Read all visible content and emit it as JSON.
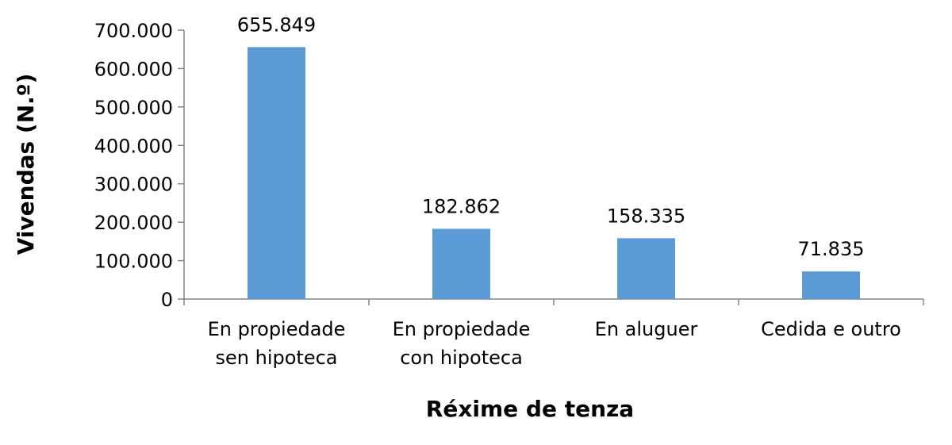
{
  "chart_data": {
    "type": "bar",
    "categories": [
      [
        "En propiedade",
        "sen hipoteca"
      ],
      [
        "En propiedade",
        "con hipoteca"
      ],
      [
        "En aluguer"
      ],
      [
        "Cedida e outro"
      ]
    ],
    "values": [
      655849,
      182862,
      158335,
      71835
    ],
    "data_labels": [
      "655.849",
      "182.862",
      "158.335",
      "71.835"
    ],
    "xlabel": "Réxime de tenza",
    "ylabel": "Vivendas (N.º)",
    "ylim": [
      0,
      700000
    ],
    "yticks": [
      0,
      100000,
      200000,
      300000,
      400000,
      500000,
      600000,
      700000
    ],
    "ytick_labels": [
      "0",
      "100.000",
      "200.000",
      "300.000",
      "400.000",
      "500.000",
      "600.000",
      "700.000"
    ],
    "grid": false,
    "legend": "none",
    "bar_color": "#5b9bd5",
    "axis_color": "#868686"
  }
}
